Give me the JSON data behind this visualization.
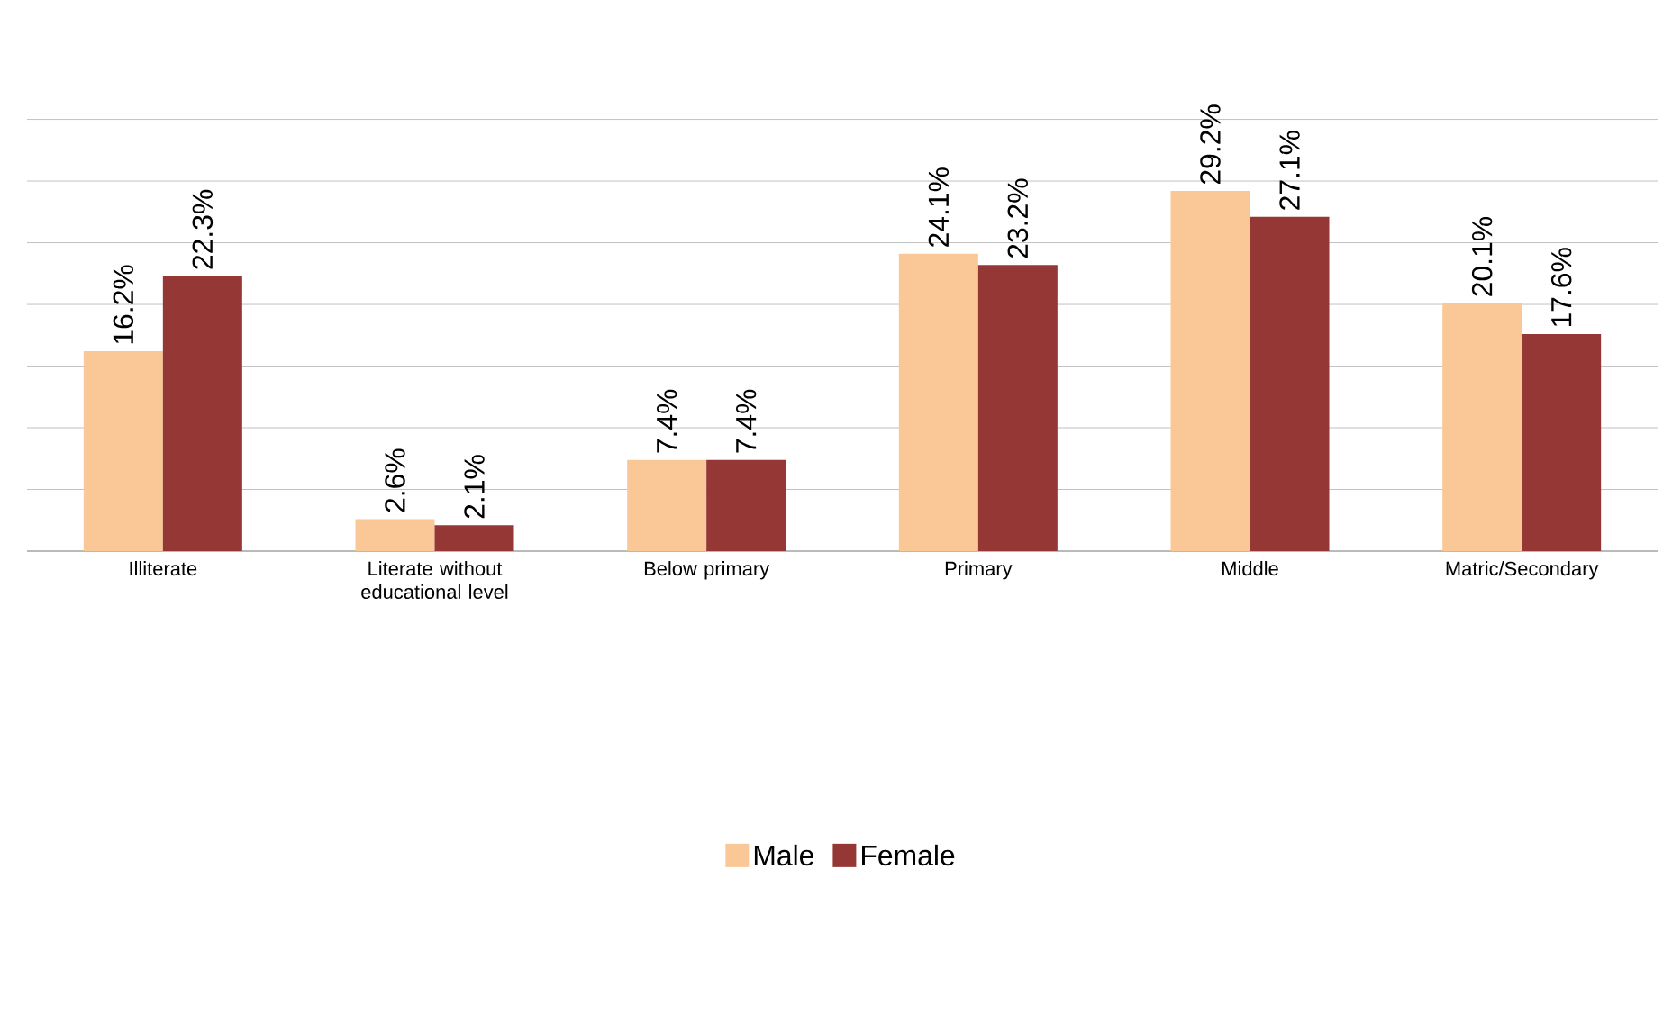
{
  "chart_data": {
    "type": "bar",
    "categories": [
      "Illiterate",
      "Literate without educational level",
      "Below primary",
      "Primary",
      "Middle",
      "Matric/Secondary"
    ],
    "series": [
      {
        "name": "Male",
        "color": "#fac896",
        "values": [
          16.2,
          2.6,
          7.4,
          24.1,
          29.2,
          20.1
        ],
        "value_labels": [
          "16.2%",
          "2.6%",
          "7.4%",
          "24.1%",
          "29.2%",
          "20.1%"
        ]
      },
      {
        "name": "Female",
        "color": "#953735",
        "values": [
          22.3,
          2.1,
          7.4,
          23.2,
          27.1,
          17.6
        ],
        "value_labels": [
          "22.3%",
          "2.1%",
          "7.4%",
          "23.2%",
          "27.1%",
          "17.6%"
        ]
      }
    ],
    "data_labels": true,
    "grid": "y",
    "legend": "bottom",
    "tick_labels": "x"
  }
}
